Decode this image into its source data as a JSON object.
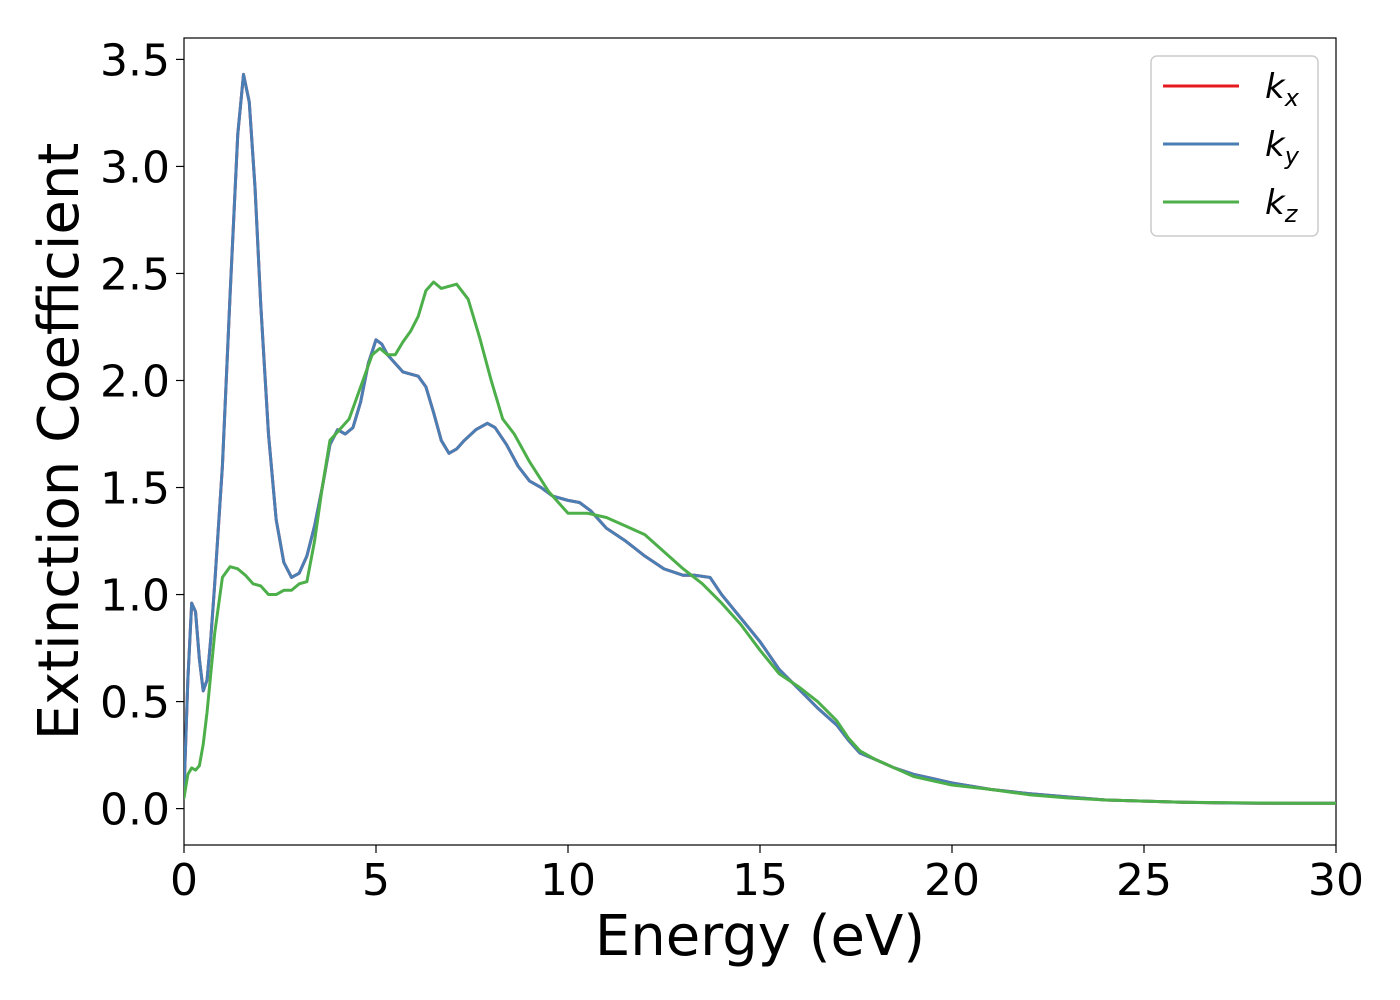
{
  "chart_data": {
    "type": "line",
    "xlabel": "Energy (eV)",
    "ylabel": "Extinction Coefficient",
    "xlim": [
      0,
      30
    ],
    "ylim": [
      -0.17,
      3.6
    ],
    "xticks": [
      "0",
      "5",
      "10",
      "15",
      "20",
      "25",
      "30"
    ],
    "yticks": [
      "0.0",
      "0.5",
      "1.0",
      "1.5",
      "2.0",
      "2.5",
      "3.0",
      "3.5"
    ],
    "grid": false,
    "legend_position": "top-right",
    "series": [
      {
        "name": "k_x",
        "symbol": "k",
        "subscript": "x",
        "color": "#e41a1c",
        "x": [
          0,
          0.1,
          0.2,
          0.3,
          0.4,
          0.5,
          0.6,
          0.7,
          0.8,
          1.0,
          1.2,
          1.4,
          1.55,
          1.7,
          1.85,
          2.0,
          2.2,
          2.4,
          2.6,
          2.8,
          3.0,
          3.2,
          3.4,
          3.6,
          3.8,
          4.0,
          4.2,
          4.4,
          4.6,
          4.8,
          5.0,
          5.15,
          5.3,
          5.5,
          5.7,
          5.9,
          6.1,
          6.3,
          6.5,
          6.7,
          6.9,
          7.1,
          7.3,
          7.6,
          7.9,
          8.1,
          8.4,
          8.7,
          9.0,
          9.3,
          9.6,
          10.0,
          10.3,
          10.6,
          11.0,
          11.5,
          12.0,
          12.5,
          13.0,
          13.3,
          13.7,
          14.0,
          14.5,
          15.0,
          15.5,
          16.0,
          16.5,
          17.0,
          17.3,
          17.6,
          18.0,
          18.5,
          19.0,
          19.5,
          20.0,
          21.0,
          22.0,
          23.0,
          24.0,
          25.0,
          26.0,
          27.0,
          28.0,
          29.0,
          30.0
        ],
        "y": [
          0.08,
          0.6,
          0.96,
          0.92,
          0.7,
          0.55,
          0.6,
          0.8,
          1.05,
          1.6,
          2.4,
          3.15,
          3.43,
          3.3,
          2.9,
          2.35,
          1.75,
          1.35,
          1.15,
          1.08,
          1.1,
          1.18,
          1.32,
          1.5,
          1.7,
          1.77,
          1.75,
          1.78,
          1.9,
          2.08,
          2.19,
          2.17,
          2.12,
          2.08,
          2.04,
          2.03,
          2.02,
          1.97,
          1.85,
          1.72,
          1.66,
          1.68,
          1.72,
          1.77,
          1.8,
          1.78,
          1.7,
          1.6,
          1.53,
          1.5,
          1.46,
          1.44,
          1.43,
          1.39,
          1.31,
          1.25,
          1.18,
          1.12,
          1.09,
          1.09,
          1.08,
          1.0,
          0.89,
          0.78,
          0.65,
          0.56,
          0.47,
          0.39,
          0.32,
          0.26,
          0.23,
          0.19,
          0.16,
          0.14,
          0.12,
          0.09,
          0.07,
          0.055,
          0.04,
          0.035,
          0.03,
          0.027,
          0.025,
          0.025,
          0.025
        ]
      },
      {
        "name": "k_y",
        "symbol": "k",
        "subscript": "y",
        "color": "#4a7fb5",
        "x": [
          0,
          0.1,
          0.2,
          0.3,
          0.4,
          0.5,
          0.6,
          0.7,
          0.8,
          1.0,
          1.2,
          1.4,
          1.55,
          1.7,
          1.85,
          2.0,
          2.2,
          2.4,
          2.6,
          2.8,
          3.0,
          3.2,
          3.4,
          3.6,
          3.8,
          4.0,
          4.2,
          4.4,
          4.6,
          4.8,
          5.0,
          5.15,
          5.3,
          5.5,
          5.7,
          5.9,
          6.1,
          6.3,
          6.5,
          6.7,
          6.9,
          7.1,
          7.3,
          7.6,
          7.9,
          8.1,
          8.4,
          8.7,
          9.0,
          9.3,
          9.6,
          10.0,
          10.3,
          10.6,
          11.0,
          11.5,
          12.0,
          12.5,
          13.0,
          13.3,
          13.7,
          14.0,
          14.5,
          15.0,
          15.5,
          16.0,
          16.5,
          17.0,
          17.3,
          17.6,
          18.0,
          18.5,
          19.0,
          19.5,
          20.0,
          21.0,
          22.0,
          23.0,
          24.0,
          25.0,
          26.0,
          27.0,
          28.0,
          29.0,
          30.0
        ],
        "y": [
          0.08,
          0.6,
          0.96,
          0.92,
          0.7,
          0.55,
          0.6,
          0.8,
          1.05,
          1.6,
          2.4,
          3.15,
          3.43,
          3.3,
          2.9,
          2.35,
          1.75,
          1.35,
          1.15,
          1.08,
          1.1,
          1.18,
          1.32,
          1.5,
          1.7,
          1.77,
          1.75,
          1.78,
          1.9,
          2.08,
          2.19,
          2.17,
          2.12,
          2.08,
          2.04,
          2.03,
          2.02,
          1.97,
          1.85,
          1.72,
          1.66,
          1.68,
          1.72,
          1.77,
          1.8,
          1.78,
          1.7,
          1.6,
          1.53,
          1.5,
          1.46,
          1.44,
          1.43,
          1.39,
          1.31,
          1.25,
          1.18,
          1.12,
          1.09,
          1.09,
          1.08,
          1.0,
          0.89,
          0.78,
          0.65,
          0.56,
          0.47,
          0.39,
          0.32,
          0.26,
          0.23,
          0.19,
          0.16,
          0.14,
          0.12,
          0.09,
          0.07,
          0.055,
          0.04,
          0.035,
          0.03,
          0.027,
          0.025,
          0.025,
          0.025
        ]
      },
      {
        "name": "k_z",
        "symbol": "k",
        "subscript": "z",
        "color": "#4daf4a",
        "x": [
          0,
          0.1,
          0.2,
          0.3,
          0.4,
          0.5,
          0.6,
          0.8,
          1.0,
          1.2,
          1.4,
          1.6,
          1.8,
          2.0,
          2.2,
          2.4,
          2.6,
          2.8,
          3.0,
          3.2,
          3.4,
          3.6,
          3.8,
          4.0,
          4.3,
          4.6,
          4.9,
          5.1,
          5.3,
          5.5,
          5.7,
          5.9,
          6.1,
          6.3,
          6.5,
          6.7,
          6.9,
          7.1,
          7.4,
          7.7,
          8.0,
          8.3,
          8.6,
          9.0,
          9.5,
          10.0,
          10.5,
          11.0,
          11.5,
          12.0,
          12.5,
          13.0,
          13.5,
          14.0,
          14.5,
          15.0,
          15.5,
          16.0,
          16.5,
          17.0,
          17.3,
          17.6,
          18.0,
          18.5,
          19.0,
          19.5,
          20.0,
          21.0,
          22.0,
          23.0,
          24.0,
          25.0,
          26.0,
          27.0,
          28.0,
          29.0,
          30.0
        ],
        "y": [
          0.05,
          0.16,
          0.19,
          0.18,
          0.2,
          0.3,
          0.45,
          0.82,
          1.08,
          1.13,
          1.12,
          1.09,
          1.05,
          1.04,
          1.0,
          1.0,
          1.02,
          1.02,
          1.05,
          1.06,
          1.25,
          1.5,
          1.72,
          1.76,
          1.82,
          1.97,
          2.12,
          2.15,
          2.12,
          2.12,
          2.18,
          2.23,
          2.3,
          2.42,
          2.46,
          2.43,
          2.44,
          2.45,
          2.38,
          2.2,
          2.0,
          1.82,
          1.75,
          1.62,
          1.48,
          1.38,
          1.38,
          1.36,
          1.32,
          1.28,
          1.2,
          1.12,
          1.05,
          0.96,
          0.86,
          0.74,
          0.63,
          0.57,
          0.5,
          0.41,
          0.33,
          0.27,
          0.23,
          0.19,
          0.15,
          0.13,
          0.11,
          0.09,
          0.065,
          0.05,
          0.04,
          0.035,
          0.03,
          0.028,
          0.026,
          0.025,
          0.025
        ]
      }
    ]
  }
}
